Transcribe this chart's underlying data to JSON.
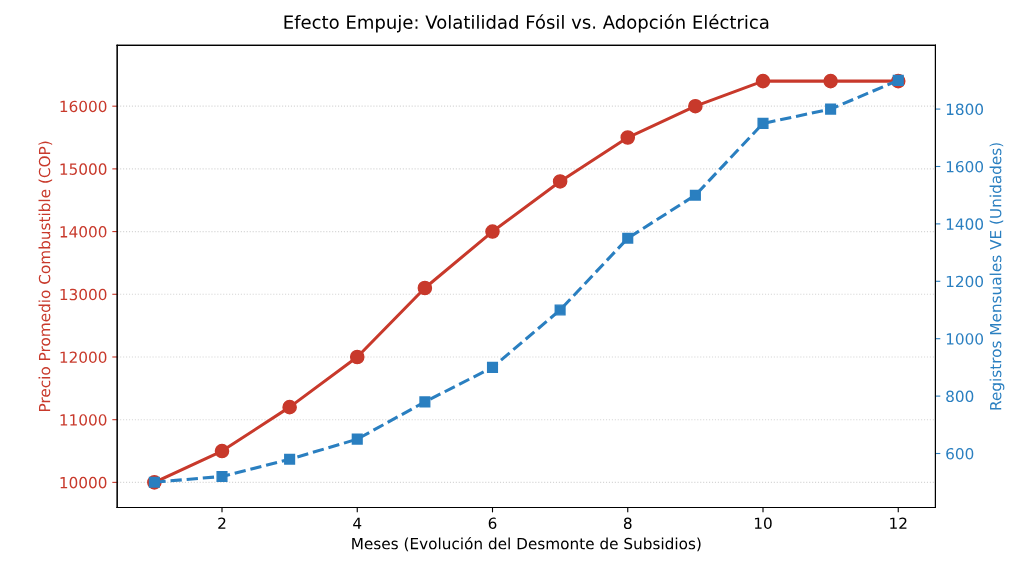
{
  "chart_data": {
    "type": "line",
    "title": "Efecto Empuje: Volatilidad Fósil vs. Adopción Eléctrica",
    "xlabel": "Meses (Evolución del Desmonte de Subsidios)",
    "ylabel": "Precio Promedio Combustible (COP)",
    "y2label": "Registros Mensuales VE (Unidades)",
    "x": [
      1,
      2,
      3,
      4,
      5,
      6,
      7,
      8,
      9,
      10,
      11,
      12
    ],
    "series": [
      {
        "color": "#c8392b",
        "marker": "circle",
        "line_style": "solid",
        "values": [
          10000,
          10500,
          11200,
          12000,
          13100,
          14000,
          14800,
          15500,
          16000,
          16400,
          16400,
          16400
        ]
      },
      {
        "color": "#2a7fc0",
        "marker": "square",
        "line_style": "dashed",
        "axis": "y2",
        "values": [
          500,
          520,
          580,
          650,
          780,
          900,
          1100,
          1350,
          1500,
          1750,
          1800,
          1900
        ]
      }
    ],
    "xlim": [
      0.45,
      12.55
    ],
    "xticks": [
      2,
      4,
      6,
      8,
      10,
      12
    ],
    "ylim": [
      9600,
      16970
    ],
    "yticks": [
      10000,
      11000,
      12000,
      13000,
      14000,
      15000,
      16000
    ],
    "y2lim": [
      412,
      2022
    ],
    "y2ticks": [
      600,
      800,
      1000,
      1200,
      1400,
      1600,
      1800
    ],
    "grid": "y"
  }
}
